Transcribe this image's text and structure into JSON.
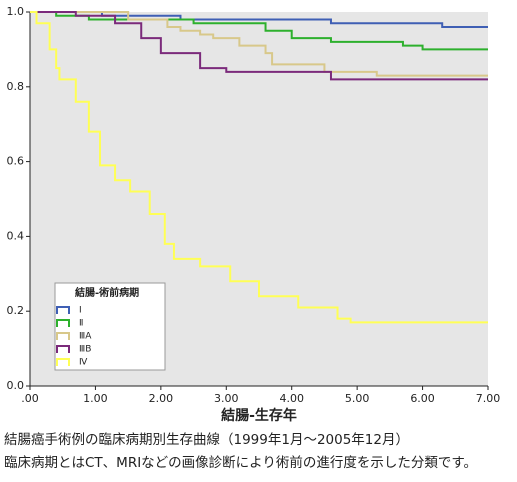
{
  "chart_data": {
    "type": "line",
    "step": true,
    "xlabel": "結腸-生存年",
    "xlim": [
      0,
      7
    ],
    "xticks": [
      {
        "value": 0,
        "label": ".00"
      },
      {
        "value": 1,
        "label": "1.00"
      },
      {
        "value": 2,
        "label": "2.00"
      },
      {
        "value": 3,
        "label": "3.00"
      },
      {
        "value": 4,
        "label": "4.00"
      },
      {
        "value": 5,
        "label": "5.00"
      },
      {
        "value": 6,
        "label": "6.00"
      },
      {
        "value": 7,
        "label": "7.00"
      }
    ],
    "ylim": [
      0,
      1
    ],
    "yticks": [
      {
        "value": 0,
        "label": "0.0"
      },
      0.2,
      0.4,
      0.6,
      0.8,
      {
        "value": 1,
        "label": "1.0"
      }
    ],
    "background": "#e6e6e6",
    "legend_title": "結腸-術前病期",
    "legend": "lower left",
    "series": [
      {
        "name": "Ⅰ",
        "color": "#3f5fb4",
        "x": [
          0,
          1.1,
          2.3,
          4.6,
          6.3,
          7
        ],
        "values": [
          1.0,
          0.99,
          0.98,
          0.97,
          0.96,
          0.96
        ]
      },
      {
        "name": "Ⅱ",
        "color": "#2db02d",
        "x": [
          0,
          0.4,
          0.9,
          2.5,
          3.6,
          4.0,
          4.6,
          5.7,
          6.0,
          7
        ],
        "values": [
          1.0,
          0.99,
          0.98,
          0.97,
          0.95,
          0.93,
          0.92,
          0.91,
          0.9,
          0.9
        ]
      },
      {
        "name": "ⅢA",
        "color": "#d8c88a",
        "x": [
          0,
          1.5,
          2.1,
          2.3,
          2.6,
          2.8,
          3.2,
          3.6,
          3.7,
          4.5,
          5.3,
          7
        ],
        "values": [
          1.0,
          0.98,
          0.96,
          0.95,
          0.94,
          0.93,
          0.91,
          0.89,
          0.86,
          0.84,
          0.83,
          0.83
        ]
      },
      {
        "name": "ⅢB",
        "color": "#7b2a7b",
        "x": [
          0,
          0.7,
          1.3,
          1.7,
          2.0,
          2.6,
          3.0,
          4.6,
          7
        ],
        "values": [
          1.0,
          0.99,
          0.97,
          0.93,
          0.89,
          0.85,
          0.84,
          0.82,
          0.82
        ]
      },
      {
        "name": "Ⅳ",
        "color": "#ffff55",
        "x": [
          0,
          0.1,
          0.3,
          0.4,
          0.45,
          0.7,
          0.9,
          1.07,
          1.3,
          1.53,
          1.83,
          2.06,
          2.2,
          2.6,
          3.06,
          3.5,
          4.1,
          4.7,
          4.9,
          7
        ],
        "values": [
          1.0,
          0.97,
          0.9,
          0.85,
          0.82,
          0.76,
          0.68,
          0.59,
          0.55,
          0.52,
          0.46,
          0.38,
          0.34,
          0.32,
          0.28,
          0.24,
          0.21,
          0.18,
          0.17,
          0.17
        ]
      }
    ],
    "caption": [
      "結腸癌手術例の臨床病期別生存曲線（1999年1月～2005年12月）",
      "臨床病期とはCT、MRIなどの画像診断により術前の進行度を示した分類です。"
    ]
  }
}
